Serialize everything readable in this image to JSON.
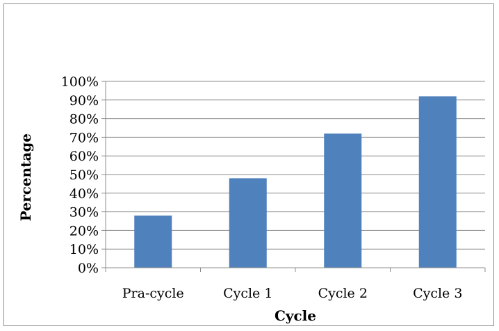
{
  "chart_data": {
    "type": "bar",
    "categories": [
      "Pra-cycle",
      "Cycle 1",
      "Cycle 2",
      "Cycle 3"
    ],
    "values": [
      28,
      48,
      72,
      92
    ],
    "xlabel": "Cycle",
    "ylabel": "Percentage",
    "ylim": [
      0,
      100
    ],
    "yticks": [
      0,
      10,
      20,
      30,
      40,
      50,
      60,
      70,
      80,
      90,
      100
    ],
    "ytick_suffix": "%",
    "grid": true,
    "legend": "none",
    "bar_color": "#4f81bd",
    "grid_color": "#8c8c8c",
    "axis_color": "#8c8c8c"
  }
}
